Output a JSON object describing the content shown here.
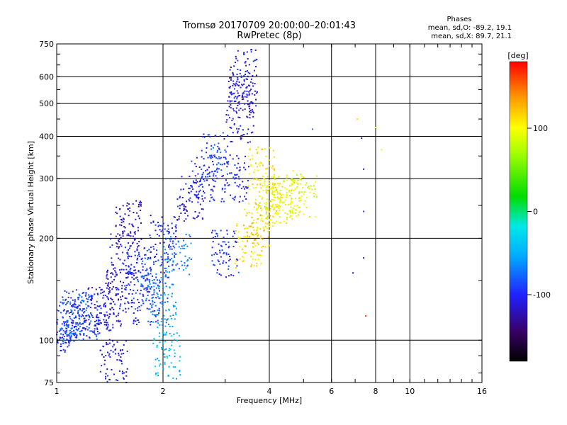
{
  "chart_data": {
    "type": "scatter",
    "title": "Tromsø 20170709 20:00:00–20:01:43",
    "subtitle": "RwPretec (8p)",
    "stats": {
      "heading": "Phases",
      "line1": "mean, sd,O: -89.2, 19.1",
      "line2": "mean, sd,X:  89.7, 21.1"
    },
    "xlabel": "Frequency [MHz]",
    "ylabel": "Stationary phase Virtual Height [km]",
    "x_scale": "log",
    "y_scale": "log",
    "xlim": [
      1,
      16
    ],
    "ylim": [
      75,
      750
    ],
    "x_ticks": [
      1,
      2,
      4,
      6,
      8,
      10,
      16
    ],
    "x_major_grid": [
      2,
      4,
      6,
      8,
      10
    ],
    "y_ticks": [
      75,
      100,
      200,
      300,
      400,
      500,
      600,
      750
    ],
    "y_major_grid": [
      100,
      200,
      300,
      400,
      500,
      600
    ],
    "grid": true,
    "colorbar": {
      "label": "[deg]",
      "range": [
        -180,
        180
      ],
      "ticks": [
        100,
        0,
        -100
      ],
      "colormap": "rainbow"
    },
    "series_summary": [
      {
        "x": 1.0,
        "y": 112,
        "phase": -95
      },
      {
        "x": 1.05,
        "y": 108,
        "phase": -100
      },
      {
        "x": 1.1,
        "y": 115,
        "phase": -80
      },
      {
        "x": 1.15,
        "y": 120,
        "phase": -90
      },
      {
        "x": 1.2,
        "y": 118,
        "phase": -85
      },
      {
        "x": 1.3,
        "y": 122,
        "phase": -110
      },
      {
        "x": 1.4,
        "y": 125,
        "phase": -105
      },
      {
        "x": 1.5,
        "y": 140,
        "phase": -115
      },
      {
        "x": 1.55,
        "y": 180,
        "phase": -110
      },
      {
        "x": 1.6,
        "y": 220,
        "phase": -120
      },
      {
        "x": 1.7,
        "y": 160,
        "phase": -100
      },
      {
        "x": 1.8,
        "y": 130,
        "phase": -95
      },
      {
        "x": 1.9,
        "y": 150,
        "phase": -85
      },
      {
        "x": 2.0,
        "y": 200,
        "phase": -105
      },
      {
        "x": 2.0,
        "y": 128,
        "phase": -60
      },
      {
        "x": 2.2,
        "y": 180,
        "phase": -70
      },
      {
        "x": 2.4,
        "y": 260,
        "phase": -110
      },
      {
        "x": 2.6,
        "y": 300,
        "phase": -100
      },
      {
        "x": 2.8,
        "y": 350,
        "phase": -90
      },
      {
        "x": 3.0,
        "y": 180,
        "phase": -95
      },
      {
        "x": 3.2,
        "y": 300,
        "phase": -100
      },
      {
        "x": 3.3,
        "y": 450,
        "phase": -110
      },
      {
        "x": 3.35,
        "y": 550,
        "phase": -115
      },
      {
        "x": 3.4,
        "y": 620,
        "phase": -105
      },
      {
        "x": 3.5,
        "y": 190,
        "phase": 110
      },
      {
        "x": 3.7,
        "y": 220,
        "phase": 120
      },
      {
        "x": 3.8,
        "y": 320,
        "phase": 105
      },
      {
        "x": 4.0,
        "y": 250,
        "phase": 100
      },
      {
        "x": 4.2,
        "y": 260,
        "phase": 95
      },
      {
        "x": 4.5,
        "y": 270,
        "phase": 100
      },
      {
        "x": 5.0,
        "y": 265,
        "phase": 90
      },
      {
        "x": 5.3,
        "y": 420,
        "phase": -90
      },
      {
        "x": 7.1,
        "y": 450,
        "phase": 110
      },
      {
        "x": 7.3,
        "y": 395,
        "phase": -100
      },
      {
        "x": 7.4,
        "y": 320,
        "phase": -110
      },
      {
        "x": 7.4,
        "y": 240,
        "phase": -90
      },
      {
        "x": 7.4,
        "y": 175,
        "phase": -130
      },
      {
        "x": 6.9,
        "y": 158,
        "phase": -110
      },
      {
        "x": 7.5,
        "y": 118,
        "phase": 160
      },
      {
        "x": 8.0,
        "y": 425,
        "phase": 110
      },
      {
        "x": 8.3,
        "y": 365,
        "phase": 100
      },
      {
        "x": 1.45,
        "y": 86,
        "phase": -110
      },
      {
        "x": 2.05,
        "y": 90,
        "phase": -40
      }
    ]
  }
}
